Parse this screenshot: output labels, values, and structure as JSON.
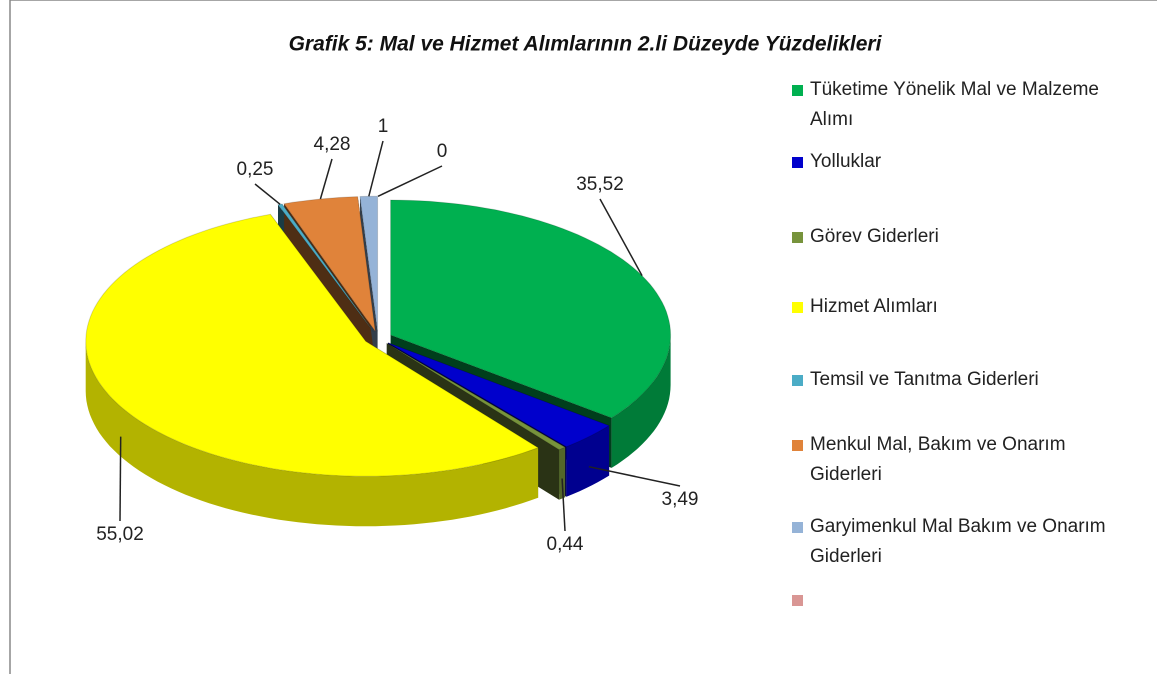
{
  "chart_data": {
    "type": "pie",
    "title": "Grafik 5: Mal ve Hizmet Alımlarının 2.li Düzeyde Yüzdelikleri",
    "categories": [
      "Tüketime Yönelik Mal ve Malzeme Alımı",
      "Yolluklar",
      "Görev Giderleri",
      "Hizmet Alımları",
      "Temsil ve Tanıtma Giderleri",
      "Menkul Mal, Bakım ve Onarım Giderleri",
      "Garyimenkul Mal Bakım ve Onarım Giderleri",
      null
    ],
    "values": [
      35.52,
      3.49,
      0.44,
      55.02,
      0.25,
      4.28,
      1,
      0
    ],
    "value_labels": [
      "35,52",
      "3,49",
      "0,44",
      "55,02",
      "0,25",
      "4,28",
      "1",
      "0"
    ],
    "colors": [
      "#00b050",
      "#0000cc",
      "#77933c",
      "#ffff00",
      "#4bacc6",
      "#e0833a",
      "#95b3d7",
      "#d99694"
    ],
    "legend": "right"
  }
}
